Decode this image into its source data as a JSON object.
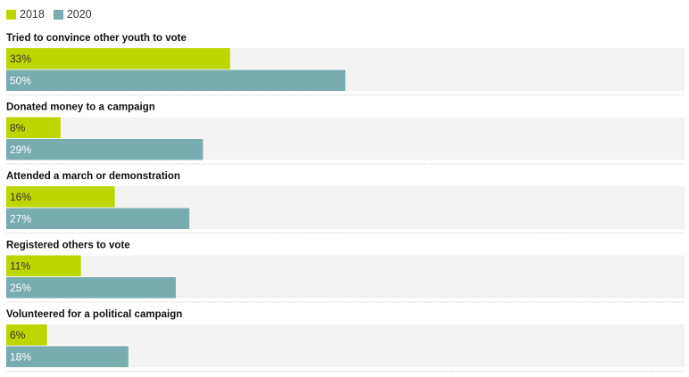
{
  "colors": {
    "2018": "#bcd600",
    "2020": "#78acaf",
    "track": "#f3f3f3",
    "divider": "#cccccc"
  },
  "chart_data": {
    "type": "bar",
    "orientation": "horizontal",
    "categories": [
      "Tried to convince other youth to vote",
      "Donated money to a campaign",
      "Attended a march or demonstration",
      "Registered others to vote",
      "Volunteered for a political campaign"
    ],
    "series": [
      {
        "name": "2018",
        "values": [
          33,
          8,
          16,
          11,
          6
        ],
        "labels": [
          "33%",
          "8%",
          "16%",
          "11%",
          "6%"
        ]
      },
      {
        "name": "2020",
        "values": [
          50,
          29,
          27,
          25,
          18
        ],
        "labels": [
          "50%",
          "29%",
          "27%",
          "25%",
          "18%"
        ]
      }
    ],
    "xlim": [
      0,
      100
    ],
    "legend": "top-left",
    "grid": false
  }
}
